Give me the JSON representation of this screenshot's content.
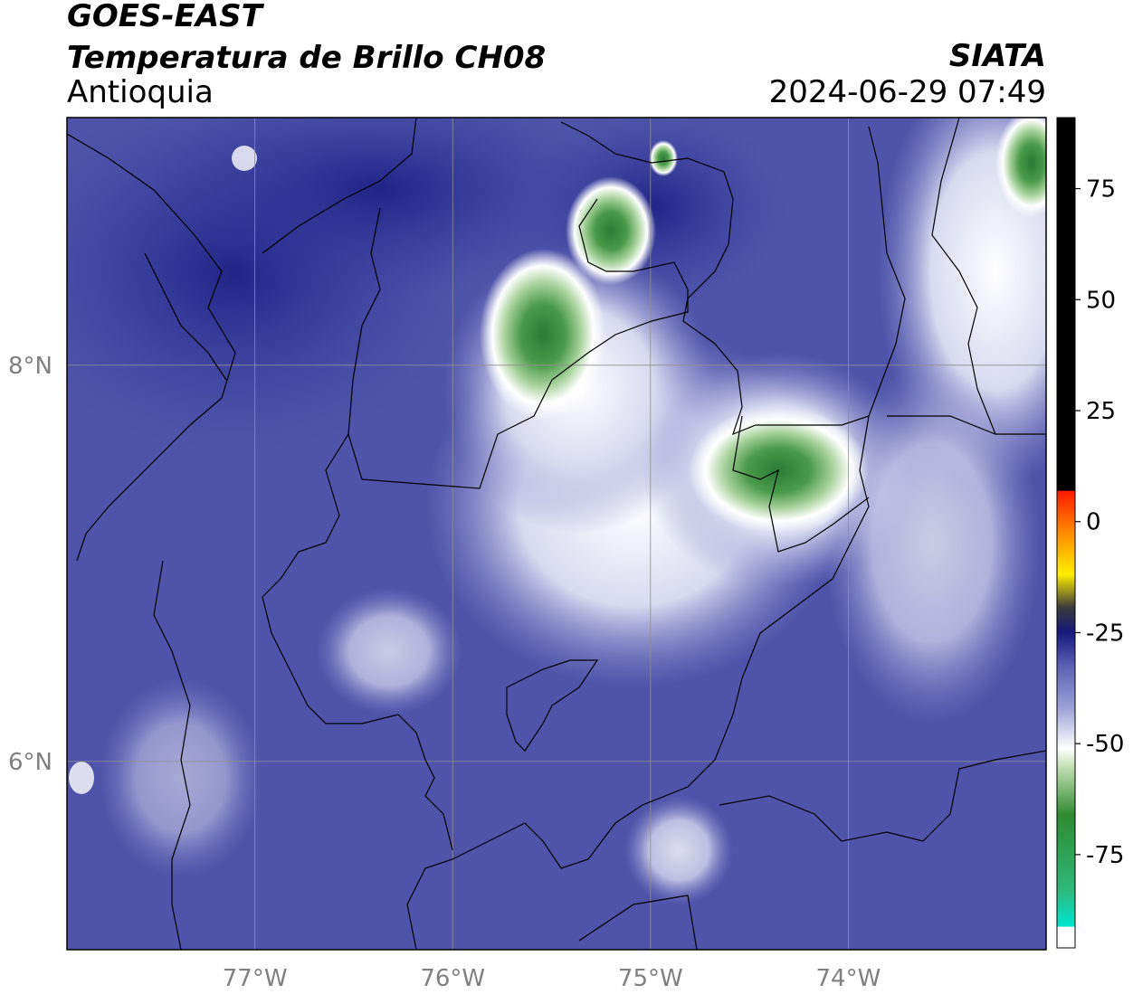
{
  "header": {
    "satellite": "GOES-EAST",
    "product": "Temperatura de Brillo CH08",
    "region": "Antioquia",
    "brand": "SIATA",
    "datetime": "2024-06-29 07:49"
  },
  "map": {
    "lon_range": [
      -77.95,
      -73.0
    ],
    "lat_range": [
      5.05,
      9.25
    ],
    "lon_ticks": [
      {
        "value": -77,
        "label": "77°W"
      },
      {
        "value": -76,
        "label": "76°W"
      },
      {
        "value": -75,
        "label": "75°W"
      },
      {
        "value": -74,
        "label": "74°W"
      }
    ],
    "lat_ticks": [
      {
        "value": 8,
        "label": "8°N"
      },
      {
        "value": 6,
        "label": "6°N"
      }
    ],
    "gridlines": true
  },
  "colorbar": {
    "range": [
      -96,
      91
    ],
    "ticks": [
      {
        "value": 75,
        "label": "75"
      },
      {
        "value": 50,
        "label": "50"
      },
      {
        "value": 25,
        "label": "25"
      },
      {
        "value": 0,
        "label": "0"
      },
      {
        "value": -25,
        "label": "-25"
      },
      {
        "value": -50,
        "label": "-50"
      },
      {
        "value": -75,
        "label": "-75"
      }
    ],
    "colors": {
      "black": "#000000",
      "red": "#ff1a00",
      "orange": "#ff8c00",
      "yellow": "#ffee00",
      "dark_blue": "#15197a",
      "purple": "#5a5fb4",
      "white": "#ffffff",
      "green": "#2e8b2e",
      "cyan": "#00e5d0"
    }
  }
}
